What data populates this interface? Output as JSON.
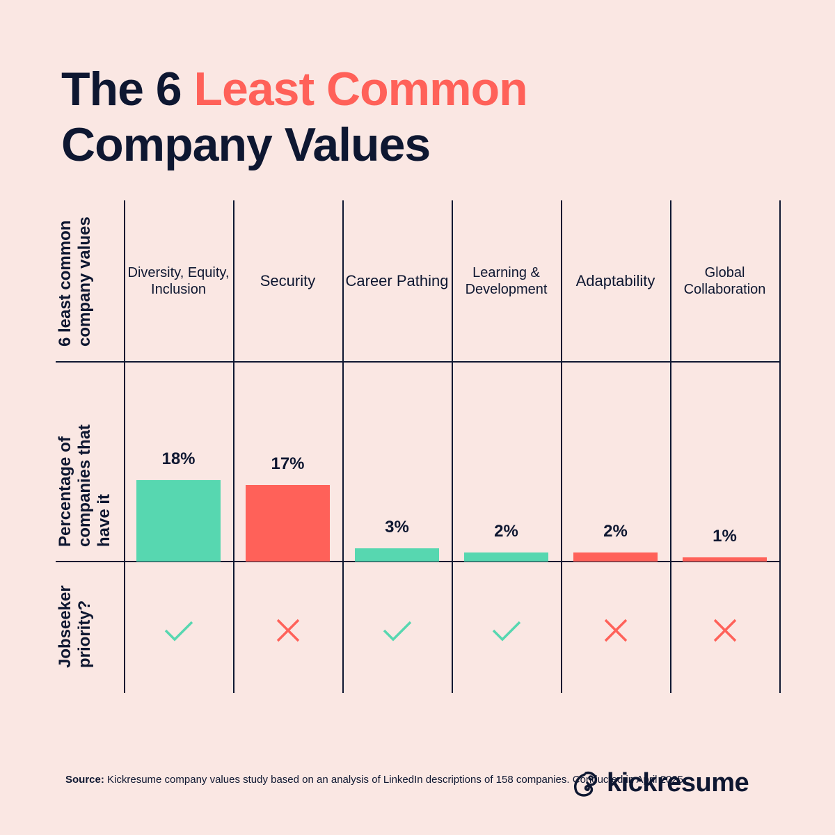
{
  "title": {
    "part1": "The 6 ",
    "highlight": "Least Common",
    "line2": "Company Values"
  },
  "row_labels": [
    "6 least common company values",
    "Percentage of companies that have it",
    "Jobseeker priority?"
  ],
  "colors": {
    "background": "#FAE7E3",
    "text": "#0E1731",
    "priority": "#57D7B0",
    "not_priority": "#FF6159"
  },
  "chart_data": {
    "type": "bar",
    "categories": [
      "Diversity, Equity, Inclusion",
      "Security",
      "Career Pathing",
      "Learning & Development",
      "Adaptability",
      "Global Collaboration"
    ],
    "values": [
      18,
      17,
      3,
      2,
      2,
      1
    ],
    "value_labels": [
      "18%",
      "17%",
      "3%",
      "2%",
      "2%",
      "1%"
    ],
    "jobseeker_priority": [
      true,
      false,
      true,
      true,
      false,
      false
    ],
    "unit": "%",
    "grid": false
  },
  "source": {
    "label": "Source:",
    "text": " Kickresume company values study based on an analysis of LinkedIn descriptions of 158 companies. Conducted in April 2025."
  },
  "logo": {
    "text": "kickresume"
  }
}
